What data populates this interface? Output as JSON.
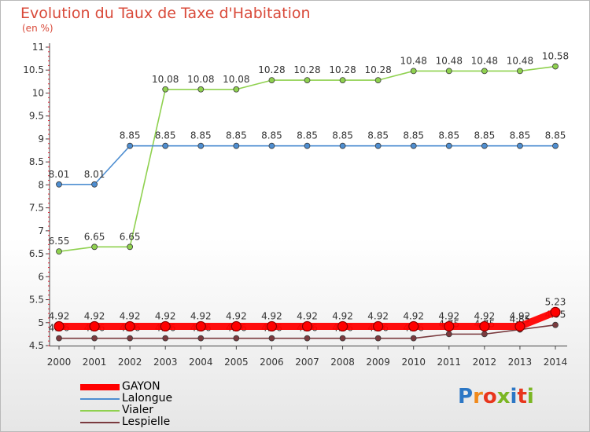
{
  "header": {
    "title": "Evolution du Taux de Taxe d'Habitation",
    "unit": "(en %)"
  },
  "logo": {
    "letters": [
      "P",
      "r",
      "o",
      "x",
      "i",
      "t",
      "i"
    ],
    "colors": [
      "#2c77c5",
      "#f08a1c",
      "#e8361d",
      "#7bb623",
      "#2c77c5",
      "#e8361d",
      "#7bb623"
    ]
  },
  "chart_data": {
    "type": "line",
    "x": [
      2000,
      2001,
      2002,
      2003,
      2004,
      2005,
      2006,
      2007,
      2008,
      2009,
      2010,
      2011,
      2012,
      2013,
      2014
    ],
    "y_ticks": [
      4.5,
      5,
      5.5,
      6,
      6.5,
      7,
      7.5,
      8,
      8.5,
      9,
      9.5,
      10,
      10.5,
      11
    ],
    "y_tick_labels": [
      "4.5",
      "5",
      "5.5",
      "6",
      "6.5",
      "7",
      "7.5",
      "8",
      "8.5",
      "9",
      "9.5",
      "10",
      "10.5",
      "11"
    ],
    "ylim": [
      4.5,
      11
    ],
    "grid": false,
    "legend": "bottom-left",
    "series": [
      {
        "name": "Lespielle",
        "color": "#7a3a3e",
        "values": [
          4.66,
          4.66,
          4.66,
          4.66,
          4.66,
          4.66,
          4.66,
          4.66,
          4.66,
          4.66,
          4.66,
          4.75,
          4.75,
          4.85,
          4.95
        ],
        "labels": [
          "4.66",
          "4.66",
          "4.66",
          "4.66",
          "4.66",
          "4.66",
          "4.66",
          "4.66",
          "4.66",
          "4.66",
          "4.66",
          "4.75",
          "4.75",
          "4.85",
          "4.95"
        ]
      },
      {
        "name": "Vialer",
        "color": "#8fd14f",
        "values": [
          6.55,
          6.65,
          6.65,
          10.08,
          10.08,
          10.08,
          10.28,
          10.28,
          10.28,
          10.28,
          10.48,
          10.48,
          10.48,
          10.48,
          10.58
        ],
        "labels": [
          "6.55",
          "6.65",
          "6.65",
          "10.08",
          "10.08",
          "10.08",
          "10.28",
          "10.28",
          "10.28",
          "10.28",
          "10.48",
          "10.48",
          "10.48",
          "10.48",
          "10.58"
        ]
      },
      {
        "name": "Lalongue",
        "color": "#4e8ed1",
        "values": [
          8.01,
          8.01,
          8.85,
          8.85,
          8.85,
          8.85,
          8.85,
          8.85,
          8.85,
          8.85,
          8.85,
          8.85,
          8.85,
          8.85,
          8.85
        ],
        "labels": [
          "8.01",
          "8.01",
          "8.85",
          "8.85",
          "8.85",
          "8.85",
          "8.85",
          "8.85",
          "8.85",
          "8.85",
          "8.85",
          "8.85",
          "8.85",
          "8.85",
          "8.85"
        ]
      },
      {
        "name": "GAYON",
        "color": "#ff0000",
        "values": [
          4.92,
          4.92,
          4.92,
          4.92,
          4.92,
          4.92,
          4.92,
          4.92,
          4.92,
          4.92,
          4.92,
          4.92,
          4.92,
          4.92,
          5.23
        ],
        "labels": [
          "4.92",
          "4.92",
          "4.92",
          "4.92",
          "4.92",
          "4.92",
          "4.92",
          "4.92",
          "4.92",
          "4.92",
          "4.92",
          "4.92",
          "4.92",
          "4.92",
          "5.23"
        ]
      }
    ],
    "legend_entries": [
      {
        "name": "GAYON",
        "color": "#ff0000"
      },
      {
        "name": "Lalongue",
        "color": "#4e8ed1"
      },
      {
        "name": "Vialer",
        "color": "#8fd14f"
      },
      {
        "name": "Lespielle",
        "color": "#7a3a3e"
      }
    ]
  }
}
